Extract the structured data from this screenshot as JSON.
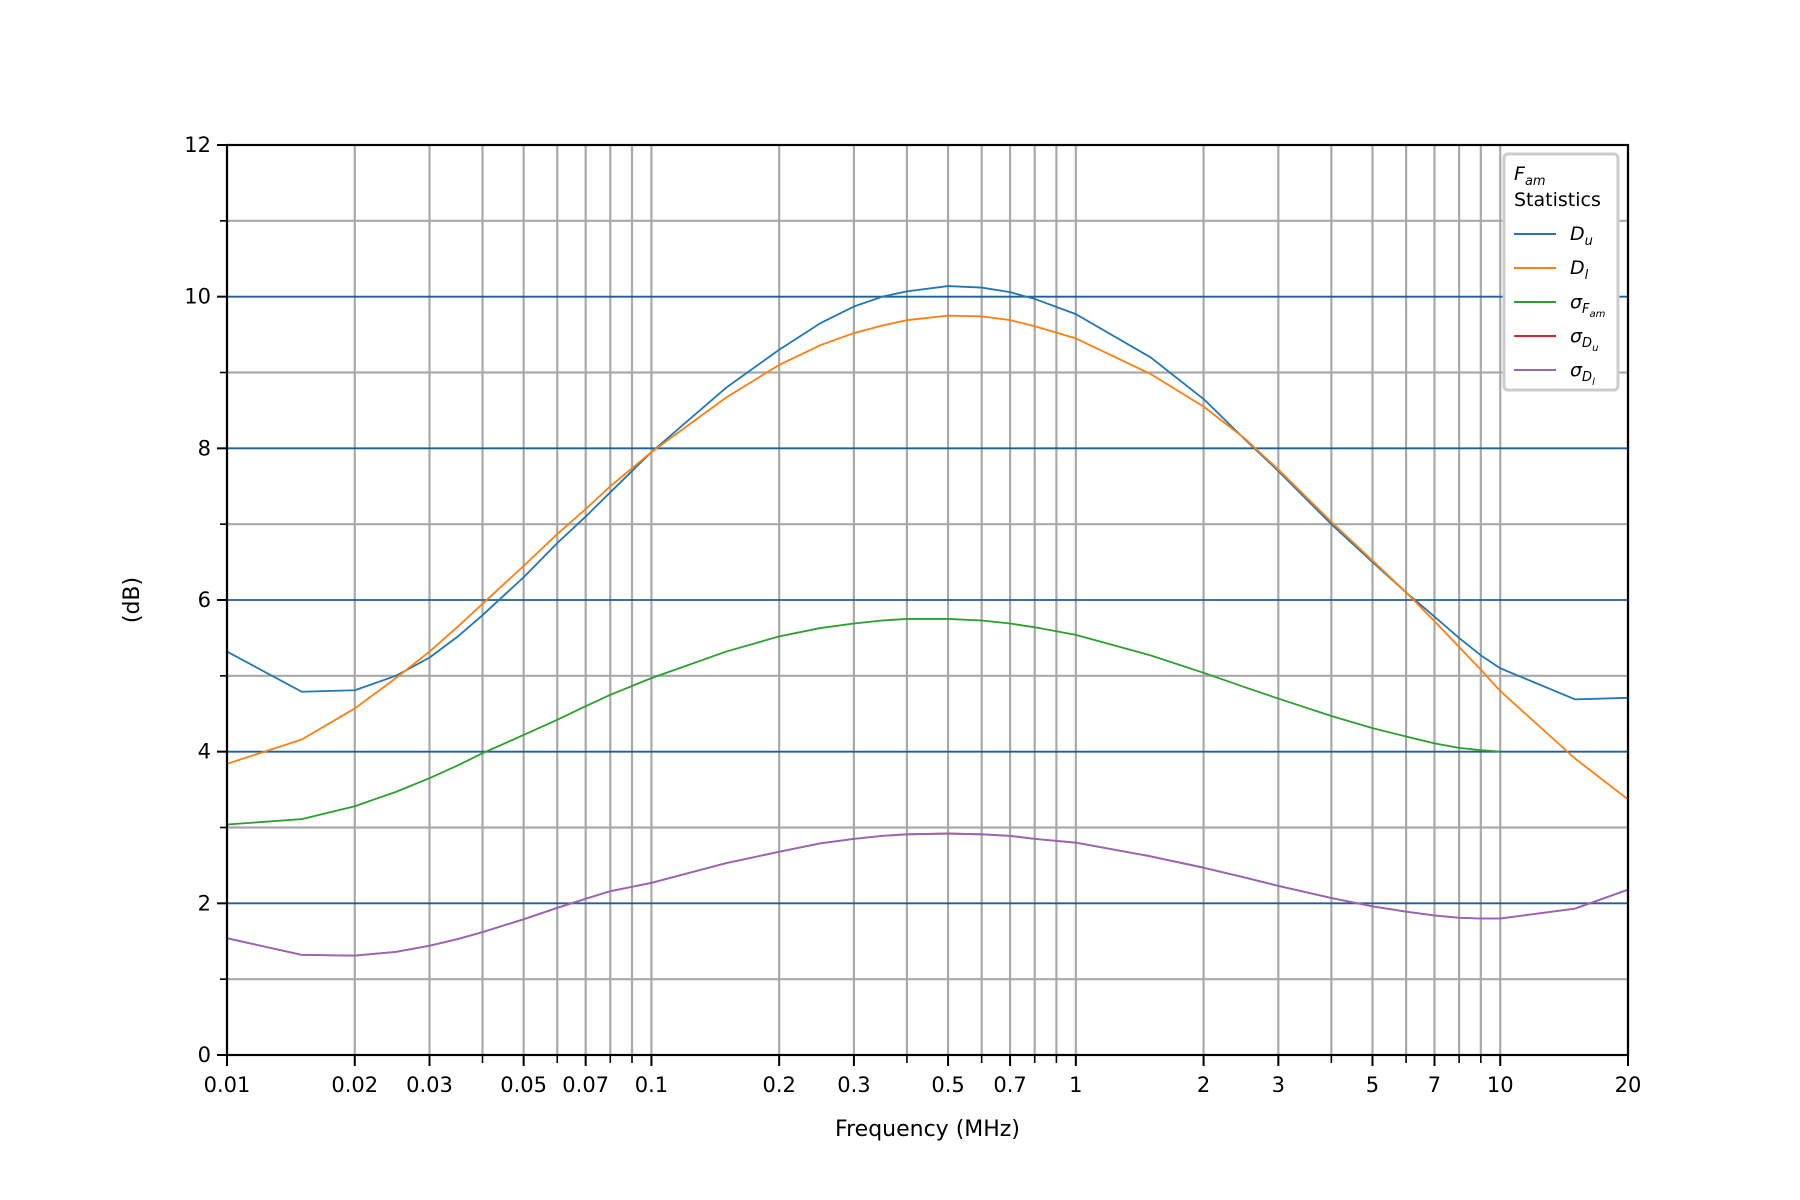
{
  "chart_data": {
    "type": "line",
    "xlabel": "Frequency (MHz)",
    "ylabel": "(dB)",
    "xscale": "log",
    "xlim": [
      0.01,
      20
    ],
    "ylim": [
      0,
      12
    ],
    "x_tick_labels": [
      {
        "value": 0.01,
        "label": "0.01"
      },
      {
        "value": 0.02,
        "label": "0.02"
      },
      {
        "value": 0.03,
        "label": "0.03"
      },
      {
        "value": 0.05,
        "label": "0.05"
      },
      {
        "value": 0.07,
        "label": "0.07"
      },
      {
        "value": 0.1,
        "label": "0.1"
      },
      {
        "value": 0.2,
        "label": "0.2"
      },
      {
        "value": 0.3,
        "label": "0.3"
      },
      {
        "value": 0.5,
        "label": "0.5"
      },
      {
        "value": 0.7,
        "label": "0.7"
      },
      {
        "value": 1,
        "label": "1"
      },
      {
        "value": 2,
        "label": "2"
      },
      {
        "value": 3,
        "label": "3"
      },
      {
        "value": 5,
        "label": "5"
      },
      {
        "value": 7,
        "label": "7"
      },
      {
        "value": 10,
        "label": "10"
      },
      {
        "value": 20,
        "label": "20"
      }
    ],
    "y_ticks": [
      0,
      2,
      4,
      6,
      8,
      10,
      12
    ],
    "y_tick_labels": [
      "0",
      "2",
      "4",
      "6",
      "8",
      "10",
      "12"
    ],
    "grid": true,
    "legend": {
      "position": "top-right",
      "title_main": "F",
      "title_sub": "am",
      "title_line2": "Statistics",
      "entries": [
        {
          "main": "D",
          "sub": "u",
          "sub2": ""
        },
        {
          "main": "D",
          "sub": "l",
          "sub2": ""
        },
        {
          "main": "σ",
          "sub": "F",
          "sub2": "am"
        },
        {
          "main": "σ",
          "sub": "D",
          "sub2": "u"
        },
        {
          "main": "σ",
          "sub": "D",
          "sub2": "l"
        }
      ]
    },
    "x": [
      0.01,
      0.015,
      0.02,
      0.025,
      0.03,
      0.035,
      0.04,
      0.05,
      0.06,
      0.07,
      0.08,
      0.1,
      0.15,
      0.2,
      0.25,
      0.3,
      0.35,
      0.4,
      0.5,
      0.6,
      0.7,
      0.8,
      1,
      1.5,
      2,
      2.5,
      3,
      4,
      5,
      6,
      7,
      8,
      9,
      10,
      15,
      20
    ],
    "series": [
      {
        "color": "#1f77b4",
        "values": [
          5.32,
          4.79,
          4.81,
          5.0,
          5.24,
          5.52,
          5.8,
          6.3,
          6.75,
          7.1,
          7.42,
          7.95,
          8.8,
          9.3,
          9.65,
          9.87,
          10.0,
          10.07,
          10.14,
          10.12,
          10.06,
          9.97,
          9.77,
          9.2,
          8.65,
          8.12,
          7.7,
          7.0,
          6.5,
          6.1,
          5.78,
          5.5,
          5.27,
          5.1,
          4.69,
          4.71
        ]
      },
      {
        "color": "#ff7f0e",
        "values": [
          3.84,
          4.16,
          4.57,
          4.97,
          5.32,
          5.65,
          5.95,
          6.45,
          6.87,
          7.2,
          7.5,
          7.95,
          8.67,
          9.1,
          9.36,
          9.52,
          9.62,
          9.69,
          9.75,
          9.74,
          9.69,
          9.61,
          9.45,
          8.98,
          8.55,
          8.13,
          7.72,
          7.03,
          6.52,
          6.1,
          5.72,
          5.38,
          5.08,
          4.8,
          3.91,
          3.37
        ]
      },
      {
        "color": "#2ca02c",
        "values": [
          3.04,
          3.11,
          3.28,
          3.47,
          3.65,
          3.82,
          3.98,
          4.22,
          4.42,
          4.6,
          4.75,
          4.97,
          5.32,
          5.52,
          5.63,
          5.69,
          5.73,
          5.75,
          5.75,
          5.73,
          5.69,
          5.64,
          5.54,
          5.27,
          5.04,
          4.85,
          4.7,
          4.47,
          4.31,
          4.2,
          4.11,
          4.05,
          4.02,
          4.0,
          null,
          null
        ]
      },
      {
        "color": "#d62728",
        "values": [
          1.54,
          1.32,
          1.31,
          1.36,
          1.44,
          1.53,
          1.62,
          1.79,
          1.94,
          2.06,
          2.16,
          2.27,
          2.53,
          2.68,
          2.79,
          2.85,
          2.89,
          2.91,
          2.92,
          2.91,
          2.89,
          2.85,
          2.8,
          2.62,
          2.47,
          2.34,
          2.23,
          2.07,
          1.96,
          1.89,
          1.84,
          1.81,
          1.8,
          1.8,
          1.93,
          2.18
        ]
      },
      {
        "color": "#9467bd",
        "values": [
          1.54,
          1.32,
          1.31,
          1.36,
          1.44,
          1.53,
          1.62,
          1.79,
          1.94,
          2.06,
          2.16,
          2.27,
          2.53,
          2.68,
          2.79,
          2.85,
          2.89,
          2.91,
          2.92,
          2.91,
          2.89,
          2.85,
          2.8,
          2.62,
          2.47,
          2.34,
          2.23,
          2.07,
          1.96,
          1.89,
          1.84,
          1.81,
          1.8,
          1.8,
          1.93,
          2.18
        ]
      }
    ]
  }
}
